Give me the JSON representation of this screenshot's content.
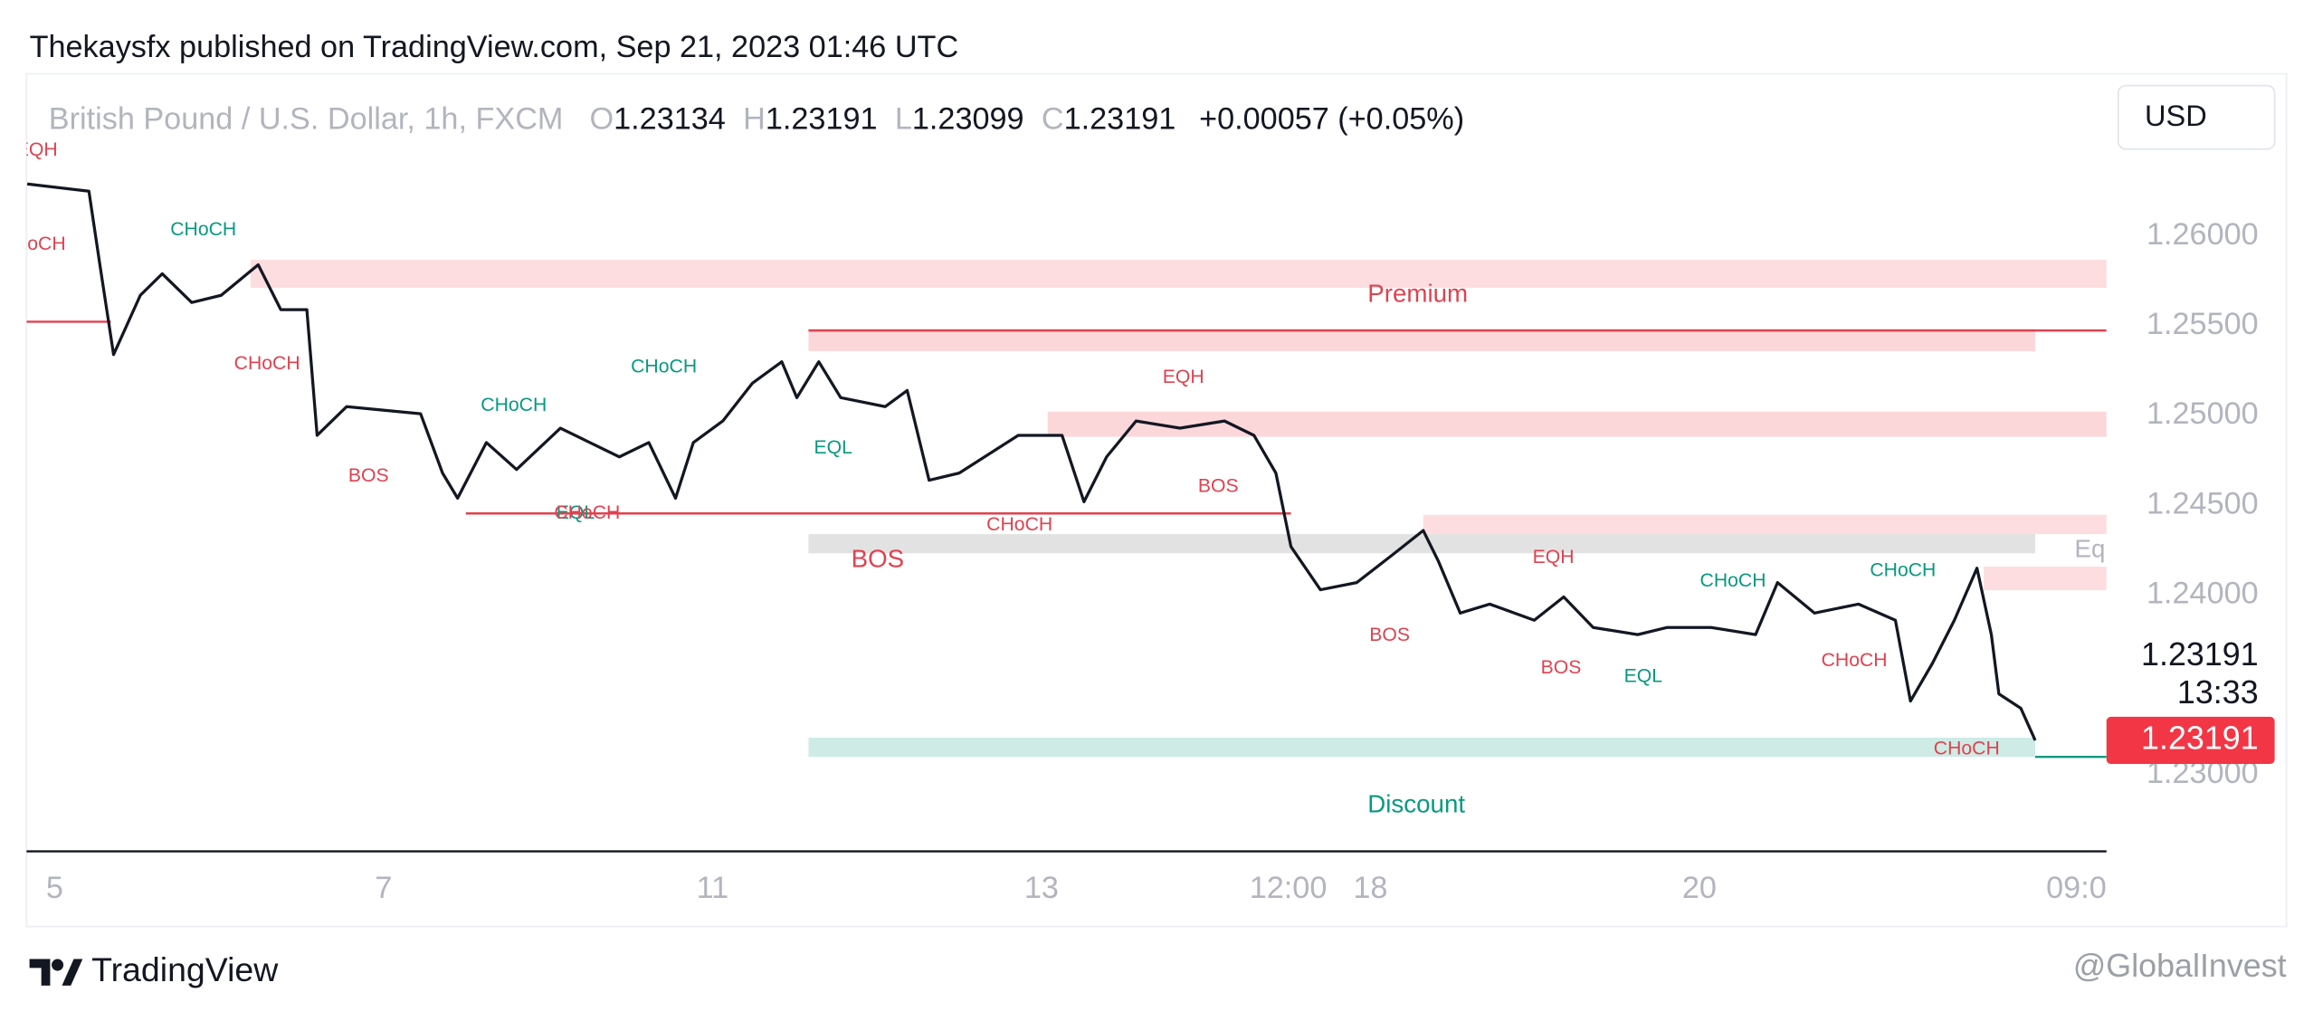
{
  "header": {
    "published": "Thekaysfx published on TradingView.com, Sep 21, 2023 01:46 UTC"
  },
  "chart_data": {
    "type": "line",
    "symbol": "British Pound / U.S. Dollar, 1h, FXCM",
    "ohlc": [
      {
        "key": "O",
        "value": 1.23134
      },
      {
        "key": "H",
        "value": 1.23191
      },
      {
        "key": "L",
        "value": 1.23099
      },
      {
        "key": "C",
        "value": 1.23191
      }
    ],
    "change_text": "+0.00057 (+0.05%)",
    "currency": "USD",
    "price_label": 1.23191,
    "countdown": "13:33",
    "last_price": 1.23191,
    "last_price_color": "#f23645",
    "xlim": [
      -4.1,
      299.4
    ],
    "ylim": [
      1.22573,
      1.26904
    ],
    "xticks": [
      {
        "value": 0,
        "label": "5"
      },
      {
        "value": 48,
        "label": "7"
      },
      {
        "value": 96,
        "label": "11"
      },
      {
        "value": 144,
        "label": "13"
      },
      {
        "value": 180,
        "label": "12:00"
      },
      {
        "value": 192,
        "label": "18"
      },
      {
        "value": 240,
        "label": "20"
      },
      {
        "value": 295,
        "label": "09:0"
      }
    ],
    "yticks": [
      {
        "value": 1.26,
        "label": "1.26000"
      },
      {
        "value": 1.255,
        "label": "1.25500"
      },
      {
        "value": 1.25,
        "label": "1.25000"
      },
      {
        "value": 1.245,
        "label": "1.24500"
      },
      {
        "value": 1.24,
        "label": "1.24000"
      },
      {
        "value": 1.23,
        "label": "1.23000"
      }
    ],
    "x": [
      -4,
      5,
      6.6,
      8.6,
      12.5,
      15.7,
      20,
      24.3,
      29.7,
      33,
      36.8,
      38.3,
      42.6,
      53.4,
      56.6,
      58.8,
      63,
      67.4,
      73.8,
      78.1,
      82.4,
      86.7,
      90.6,
      93.2,
      97.5,
      101.8,
      106.1,
      108.3,
      111.5,
      114.7,
      121.2,
      124.4,
      127.6,
      132,
      140.6,
      147,
      150.2,
      153.5,
      157.8,
      164.2,
      170.7,
      175,
      178.2,
      180.4,
      184.7,
      190,
      195.4,
      199.7,
      201.9,
      205.1,
      209.4,
      215.9,
      220.2,
      224.5,
      231,
      235.3,
      241.7,
      248.2,
      251.4,
      256.8,
      263.2,
      268.6,
      270.8,
      274,
      277.2,
      280.5,
      282.6,
      283.7,
      286.9,
      289
    ],
    "series": [
      {
        "name": "GBPUSD",
        "color": "#131722",
        "values": [
          1.2629,
          1.2625,
          1.2584,
          1.2534,
          1.2567,
          1.2579,
          1.2563,
          1.2567,
          1.2584,
          1.2559,
          1.2559,
          1.2489,
          1.2505,
          1.2501,
          1.2468,
          1.2454,
          1.2485,
          1.247,
          1.2493,
          1.2485,
          1.2477,
          1.2485,
          1.2454,
          1.2485,
          1.2497,
          1.2518,
          1.253,
          1.251,
          1.253,
          1.251,
          1.2505,
          1.2514,
          1.2464,
          1.2468,
          1.2489,
          1.2489,
          1.2452,
          1.2477,
          1.2497,
          1.2493,
          1.2497,
          1.2489,
          1.2468,
          1.2427,
          1.2403,
          1.2407,
          1.2423,
          1.2436,
          1.2419,
          1.239,
          1.2395,
          1.2386,
          1.2399,
          1.2382,
          1.2378,
          1.2382,
          1.2382,
          1.2378,
          1.2407,
          1.239,
          1.2395,
          1.2386,
          1.2341,
          1.2362,
          1.2386,
          1.2415,
          1.2378,
          1.2345,
          1.2337,
          1.23191
        ]
      }
    ],
    "zones": [
      {
        "x0": 28.6,
        "x1": 299.4,
        "top": 1.25868,
        "bottom": 1.25712,
        "color": "rgba(242,54,69,0.17)"
      },
      {
        "x0": 110,
        "x1": 289,
        "top": 1.25482,
        "bottom": 1.25359,
        "color": "rgba(242,54,69,0.2)"
      },
      {
        "x0": 144.9,
        "x1": 299.4,
        "top": 1.25022,
        "bottom": 1.24882,
        "color": "rgba(242,54,69,0.2)"
      },
      {
        "x0": 199.7,
        "x1": 299.4,
        "top": 1.24447,
        "bottom": 1.2434,
        "color": "rgba(242,54,69,0.17)"
      },
      {
        "x0": 110,
        "x1": 289,
        "top": 1.2434,
        "bottom": 1.24233,
        "color": "rgba(140,140,140,0.25)"
      },
      {
        "x0": 281.5,
        "x1": 299.4,
        "top": 1.24159,
        "bottom": 1.24027,
        "color": "rgba(242,54,69,0.17)"
      },
      {
        "x0": 110,
        "x1": 289,
        "top": 1.23206,
        "bottom": 1.23099,
        "color": "rgba(8,153,129,0.2)"
      }
    ],
    "levels": [
      {
        "x0": -4.1,
        "x1": 8.2,
        "price": 1.25523,
        "color": "#e0424f"
      },
      {
        "x0": 110,
        "x1": 299.4,
        "price": 1.25474,
        "color": "#e0424f"
      },
      {
        "x0": 60,
        "x1": 180.4,
        "price": 1.24455,
        "color": "#e0424f"
      },
      {
        "x0": 289,
        "x1": 299.4,
        "price": 1.23099,
        "color": "#089981"
      }
    ],
    "annotations": [
      {
        "text": "EQH",
        "x": -2.6,
        "price": 1.26477,
        "color": "#e0424f"
      },
      {
        "text": "CHoCH",
        "x": -3.2,
        "price": 1.25951,
        "color": "#e0424f"
      },
      {
        "text": "CHoCH",
        "x": 21.7,
        "price": 1.26033,
        "color": "#089981"
      },
      {
        "text": "CHoCH",
        "x": 31,
        "price": 1.25285,
        "color": "#e0424f"
      },
      {
        "text": "BOS",
        "x": 45.8,
        "price": 1.2466,
        "color": "#e0424f"
      },
      {
        "text": "CHoCH",
        "x": 67,
        "price": 1.25055,
        "color": "#089981"
      },
      {
        "text": "CHoCH",
        "x": 88.9,
        "price": 1.25269,
        "color": "#089981"
      },
      {
        "text": "EQL",
        "x": 113.6,
        "price": 1.24816,
        "color": "#089981"
      },
      {
        "text": "EQL",
        "x": 76,
        "price": 1.24455,
        "color": "#089981"
      },
      {
        "text": "CHoCH",
        "x": 77.7,
        "price": 1.24455,
        "color": "#e0424f"
      },
      {
        "text": "CHoCH",
        "x": 140.8,
        "price": 1.24389,
        "color": "#e0424f"
      },
      {
        "text": "BOS",
        "x": 120.1,
        "price": 1.24192,
        "color": "#e0424f",
        "big": true
      },
      {
        "text": "EQH",
        "x": 164.7,
        "price": 1.25211,
        "color": "#e0424f"
      },
      {
        "text": "BOS",
        "x": 169.8,
        "price": 1.24603,
        "color": "#e0424f"
      },
      {
        "text": "BOS",
        "x": 194.8,
        "price": 1.23773,
        "color": "#e0424f"
      },
      {
        "text": "EQH",
        "x": 218.7,
        "price": 1.24208,
        "color": "#e0424f"
      },
      {
        "text": "BOS",
        "x": 219.8,
        "price": 1.23592,
        "color": "#e0424f"
      },
      {
        "text": "EQL",
        "x": 231.8,
        "price": 1.23543,
        "color": "#089981"
      },
      {
        "text": "CHoCH",
        "x": 244.9,
        "price": 1.24077,
        "color": "#089981"
      },
      {
        "text": "CHoCH",
        "x": 269.7,
        "price": 1.24134,
        "color": "#089981"
      },
      {
        "text": "CHoCH",
        "x": 262.6,
        "price": 1.23633,
        "color": "#e0424f"
      },
      {
        "text": "CHoCH",
        "x": 279,
        "price": 1.2314,
        "color": "#e0424f"
      },
      {
        "text": "Premium",
        "x": 198.9,
        "price": 1.25671,
        "color": "#e0424f",
        "big": true
      },
      {
        "text": "Discount",
        "x": 198.7,
        "price": 1.22827,
        "color": "#089981",
        "big": true
      },
      {
        "text": "Equ",
        "x": 298,
        "price": 1.24249,
        "color": "#b2b5be",
        "big": true
      }
    ]
  },
  "footer": {
    "brand": "TradingView",
    "watermark": "@GlobalInvest"
  }
}
